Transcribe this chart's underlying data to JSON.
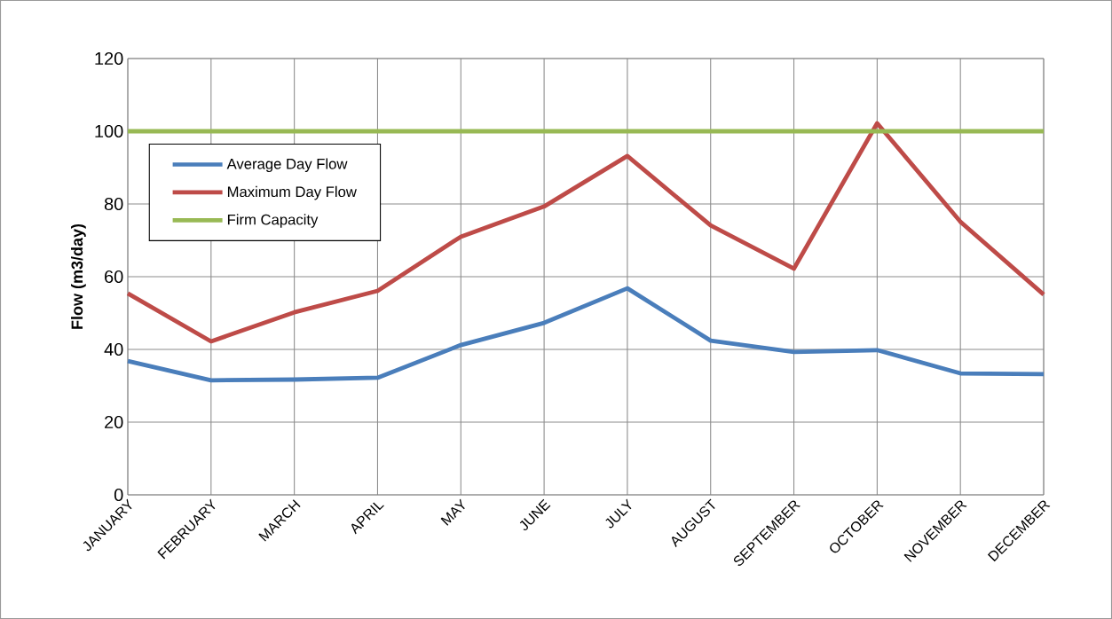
{
  "chart_data": {
    "type": "line",
    "ylabel": "Flow (m3/day)",
    "categories": [
      "JANUARY",
      "FEBRUARY",
      "MARCH",
      "APRIL",
      "MAY",
      "JUNE",
      "JULY",
      "AUGUST",
      "SEPTEMBER",
      "OCTOBER",
      "NOVEMBER",
      "DECEMBER"
    ],
    "series": [
      {
        "name": "Average Day Flow",
        "color": "#4a7ebb",
        "values": [
          36.8,
          31.5,
          31.7,
          32.2,
          41.2,
          47.3,
          56.8,
          42.4,
          39.3,
          39.8,
          33.4,
          33.2
        ]
      },
      {
        "name": "Maximum Day Flow",
        "color": "#be4b48",
        "values": [
          55.4,
          42.2,
          50.2,
          56.1,
          71.0,
          79.3,
          93.2,
          74.1,
          62.2,
          102.2,
          75.1,
          55.1
        ]
      },
      {
        "name": "Firm Capacity",
        "color": "#98b954",
        "values": [
          100,
          100,
          100,
          100,
          100,
          100,
          100,
          100,
          100,
          100,
          100,
          100
        ]
      }
    ],
    "ylim": [
      0,
      120
    ],
    "yticks": [
      0,
      20,
      40,
      60,
      80,
      100,
      120
    ],
    "grid": true,
    "legend": "top left",
    "marker": "none",
    "line_style": "solid"
  }
}
